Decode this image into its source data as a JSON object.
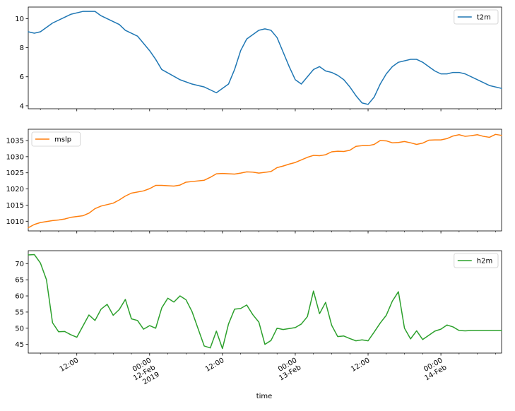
{
  "chart_data": [
    {
      "type": "line",
      "x_range": [
        "2019-02-11T04:00",
        "2019-02-14T10:00"
      ],
      "ylim": [
        3.8,
        10.8
      ],
      "yticks": [
        4,
        6,
        8,
        10
      ],
      "legend": "top-right",
      "grid": false,
      "series": [
        {
          "name": "t2m",
          "color": "#1f77b4",
          "x": [
            "2019-02-11T04:00",
            "2019-02-11T05:00",
            "2019-02-11T06:00",
            "2019-02-11T08:00",
            "2019-02-11T10:00",
            "2019-02-11T11:00",
            "2019-02-11T13:00",
            "2019-02-11T15:00",
            "2019-02-11T16:00",
            "2019-02-11T19:00",
            "2019-02-11T20:00",
            "2019-02-11T22:00",
            "2019-02-12T00:00",
            "2019-02-12T01:00",
            "2019-02-12T02:00",
            "2019-02-12T05:00",
            "2019-02-12T07:00",
            "2019-02-12T08:00",
            "2019-02-12T09:00",
            "2019-02-12T10:00",
            "2019-02-12T11:00",
            "2019-02-12T13:00",
            "2019-02-12T14:00",
            "2019-02-12T15:00",
            "2019-02-12T16:00",
            "2019-02-12T18:00",
            "2019-02-12T19:00",
            "2019-02-12T20:00",
            "2019-02-12T21:00",
            "2019-02-12T22:00",
            "2019-02-12T23:00",
            "2019-02-13T00:00",
            "2019-02-13T01:00",
            "2019-02-13T02:00",
            "2019-02-13T03:00",
            "2019-02-13T04:00",
            "2019-02-13T05:00",
            "2019-02-13T06:00",
            "2019-02-13T07:00",
            "2019-02-13T08:00",
            "2019-02-13T09:00",
            "2019-02-13T10:00",
            "2019-02-13T11:00",
            "2019-02-13T12:00",
            "2019-02-13T13:00",
            "2019-02-13T14:00",
            "2019-02-13T15:00",
            "2019-02-13T16:00",
            "2019-02-13T17:00",
            "2019-02-13T18:00",
            "2019-02-13T19:00",
            "2019-02-13T20:00",
            "2019-02-13T21:00",
            "2019-02-13T22:00",
            "2019-02-13T23:00",
            "2019-02-14T00:00",
            "2019-02-14T01:00",
            "2019-02-14T02:00",
            "2019-02-14T03:00",
            "2019-02-14T04:00",
            "2019-02-14T06:00",
            "2019-02-14T08:00",
            "2019-02-14T10:00"
          ],
          "values": [
            9.1,
            9.0,
            9.1,
            9.7,
            10.1,
            10.3,
            10.5,
            10.5,
            10.2,
            9.6,
            9.2,
            8.8,
            7.8,
            7.2,
            6.5,
            5.8,
            5.5,
            5.4,
            5.3,
            5.1,
            4.9,
            5.5,
            6.5,
            7.8,
            8.6,
            9.2,
            9.3,
            9.2,
            8.7,
            7.7,
            6.7,
            5.8,
            5.5,
            6.0,
            6.5,
            6.7,
            6.4,
            6.3,
            6.1,
            5.8,
            5.3,
            4.7,
            4.2,
            4.1,
            4.6,
            5.5,
            6.2,
            6.7,
            7.0,
            7.1,
            7.2,
            7.2,
            7.0,
            6.7,
            6.4,
            6.2,
            6.2,
            6.3,
            6.3,
            6.2,
            5.8,
            5.4,
            5.2
          ]
        }
      ]
    },
    {
      "type": "line",
      "x_range": [
        "2019-02-11T04:00",
        "2019-02-14T10:00"
      ],
      "ylim": [
        1007,
        1038.5
      ],
      "yticks": [
        1010,
        1015,
        1020,
        1025,
        1030,
        1035
      ],
      "legend": "top-left",
      "grid": false,
      "series": [
        {
          "name": "mslp",
          "color": "#ff7f0e",
          "x": [
            "2019-02-11T04:00",
            "2019-02-11T05:00",
            "2019-02-11T06:00",
            "2019-02-11T08:00",
            "2019-02-11T09:00",
            "2019-02-11T10:00",
            "2019-02-11T11:00",
            "2019-02-11T13:00",
            "2019-02-11T14:00",
            "2019-02-11T15:00",
            "2019-02-11T16:00",
            "2019-02-11T18:00",
            "2019-02-11T19:00",
            "2019-02-11T20:00",
            "2019-02-11T21:00",
            "2019-02-11T23:00",
            "2019-02-12T00:00",
            "2019-02-12T01:00",
            "2019-02-12T02:00",
            "2019-02-12T04:00",
            "2019-02-12T05:00",
            "2019-02-12T06:00",
            "2019-02-12T07:00",
            "2019-02-12T09:00",
            "2019-02-12T10:00",
            "2019-02-12T11:00",
            "2019-02-12T12:00",
            "2019-02-12T14:00",
            "2019-02-12T15:00",
            "2019-02-12T16:00",
            "2019-02-12T17:00",
            "2019-02-12T18:00",
            "2019-02-12T20:00",
            "2019-02-12T21:00",
            "2019-02-12T22:00",
            "2019-02-12T23:00",
            "2019-02-13T00:00",
            "2019-02-13T01:00",
            "2019-02-13T02:00",
            "2019-02-13T03:00",
            "2019-02-13T04:00",
            "2019-02-13T05:00",
            "2019-02-13T06:00",
            "2019-02-13T07:00",
            "2019-02-13T08:00",
            "2019-02-13T09:00",
            "2019-02-13T10:00",
            "2019-02-13T11:00",
            "2019-02-13T12:00",
            "2019-02-13T13:00",
            "2019-02-13T14:00",
            "2019-02-13T15:00",
            "2019-02-13T16:00",
            "2019-02-13T17:00",
            "2019-02-13T18:00",
            "2019-02-13T19:00",
            "2019-02-13T20:00",
            "2019-02-13T21:00",
            "2019-02-13T22:00",
            "2019-02-13T23:00",
            "2019-02-14T00:00",
            "2019-02-14T01:00",
            "2019-02-14T02:00",
            "2019-02-14T03:00",
            "2019-02-14T04:00",
            "2019-02-14T05:00",
            "2019-02-14T06:00",
            "2019-02-14T07:00",
            "2019-02-14T08:00",
            "2019-02-14T09:00",
            "2019-02-14T10:00"
          ],
          "values": [
            1008.0,
            1009.0,
            1009.6,
            1010.2,
            1010.4,
            1010.7,
            1011.2,
            1011.7,
            1012.5,
            1013.9,
            1014.7,
            1015.6,
            1016.6,
            1017.8,
            1018.7,
            1019.4,
            1020.1,
            1021.1,
            1021.1,
            1020.9,
            1021.2,
            1022.1,
            1022.3,
            1022.7,
            1023.6,
            1024.7,
            1024.8,
            1024.6,
            1024.9,
            1025.3,
            1025.2,
            1024.9,
            1025.4,
            1026.6,
            1027.1,
            1027.7,
            1028.2,
            1029.0,
            1029.8,
            1030.4,
            1030.3,
            1030.6,
            1031.5,
            1031.7,
            1031.6,
            1032.0,
            1033.2,
            1033.4,
            1033.4,
            1033.8,
            1035.0,
            1034.9,
            1034.3,
            1034.4,
            1034.7,
            1034.3,
            1033.8,
            1034.2,
            1035.1,
            1035.2,
            1035.2,
            1035.6,
            1036.4,
            1036.8,
            1036.3,
            1036.5,
            1036.8,
            1036.3,
            1036.0,
            1036.9,
            1036.6
          ]
        }
      ]
    },
    {
      "type": "line",
      "x_range": [
        "2019-02-11T04:00",
        "2019-02-14T10:00"
      ],
      "ylim": [
        42.3,
        74.0
      ],
      "yticks": [
        45,
        50,
        55,
        60,
        65,
        70
      ],
      "legend": "top-right",
      "grid": false,
      "xlabel": "time",
      "xtick_labels": [
        {
          "at": "2019-02-11T12:00",
          "lines": [
            "12:00"
          ]
        },
        {
          "at": "2019-02-12T00:00",
          "lines": [
            "00:00",
            "12-Feb",
            "2019"
          ]
        },
        {
          "at": "2019-02-12T12:00",
          "lines": [
            "12:00"
          ]
        },
        {
          "at": "2019-02-13T00:00",
          "lines": [
            "00:00",
            "13-Feb"
          ]
        },
        {
          "at": "2019-02-13T12:00",
          "lines": [
            "12:00"
          ]
        },
        {
          "at": "2019-02-14T00:00",
          "lines": [
            "00:00",
            "14-Feb"
          ]
        }
      ],
      "series": [
        {
          "name": "h2m",
          "color": "#2ca02c",
          "x": [
            "2019-02-11T04:00",
            "2019-02-11T05:00",
            "2019-02-11T06:00",
            "2019-02-11T07:00",
            "2019-02-11T08:00",
            "2019-02-11T09:00",
            "2019-02-11T10:00",
            "2019-02-11T11:00",
            "2019-02-11T12:00",
            "2019-02-11T14:00",
            "2019-02-11T15:00",
            "2019-02-11T16:00",
            "2019-02-11T17:00",
            "2019-02-11T18:00",
            "2019-02-11T19:00",
            "2019-02-11T20:00",
            "2019-02-11T21:00",
            "2019-02-11T22:00",
            "2019-02-11T23:00",
            "2019-02-12T00:00",
            "2019-02-12T01:00",
            "2019-02-12T02:00",
            "2019-02-12T03:00",
            "2019-02-12T04:00",
            "2019-02-12T05:00",
            "2019-02-12T06:00",
            "2019-02-12T07:00",
            "2019-02-12T09:00",
            "2019-02-12T10:00",
            "2019-02-12T11:00",
            "2019-02-12T12:00",
            "2019-02-12T13:00",
            "2019-02-12T14:00",
            "2019-02-12T15:00",
            "2019-02-12T16:00",
            "2019-02-12T17:00",
            "2019-02-12T18:00",
            "2019-02-12T19:00",
            "2019-02-12T20:00",
            "2019-02-12T21:00",
            "2019-02-12T22:00",
            "2019-02-12T23:00",
            "2019-02-13T00:00",
            "2019-02-13T01:00",
            "2019-02-13T02:00",
            "2019-02-13T03:00",
            "2019-02-13T04:00",
            "2019-02-13T05:00",
            "2019-02-13T06:00",
            "2019-02-13T07:00",
            "2019-02-13T08:00",
            "2019-02-13T09:00",
            "2019-02-13T10:00",
            "2019-02-13T11:00",
            "2019-02-13T12:00",
            "2019-02-13T13:00",
            "2019-02-13T14:00",
            "2019-02-13T15:00",
            "2019-02-13T16:00",
            "2019-02-13T17:00",
            "2019-02-13T18:00",
            "2019-02-13T19:00",
            "2019-02-13T20:00",
            "2019-02-13T21:00",
            "2019-02-13T22:00",
            "2019-02-13T23:00",
            "2019-02-14T00:00",
            "2019-02-14T01:00",
            "2019-02-14T02:00",
            "2019-02-14T03:00",
            "2019-02-14T04:00",
            "2019-02-14T05:00",
            "2019-02-14T06:00",
            "2019-02-14T07:00",
            "2019-02-14T08:00",
            "2019-02-14T09:00",
            "2019-02-14T10:00"
          ],
          "values": [
            72.7,
            72.8,
            70.2,
            65.0,
            51.7,
            48.9,
            49.0,
            48.0,
            47.2,
            54.1,
            52.4,
            55.9,
            57.4,
            54.0,
            55.8,
            58.9,
            52.9,
            52.4,
            49.7,
            50.8,
            50.0,
            56.3,
            59.3,
            58.1,
            60.0,
            58.8,
            55.1,
            44.5,
            43.9,
            49.1,
            43.7,
            51.3,
            55.9,
            56.1,
            57.2,
            54.2,
            51.9,
            45.0,
            46.2,
            50.0,
            49.6,
            49.9,
            50.2,
            51.3,
            53.6,
            61.5,
            54.5,
            58.0,
            50.9,
            47.4,
            47.6,
            46.8,
            46.1,
            46.4,
            46.1,
            48.8,
            51.6,
            54.0,
            58.4,
            61.3,
            50.0,
            46.7,
            49.2,
            46.5,
            47.8,
            49.1,
            49.7,
            51.0,
            50.4,
            49.3,
            49.2,
            49.3,
            49.3,
            49.3,
            49.3,
            49.3,
            49.3
          ]
        }
      ]
    }
  ]
}
